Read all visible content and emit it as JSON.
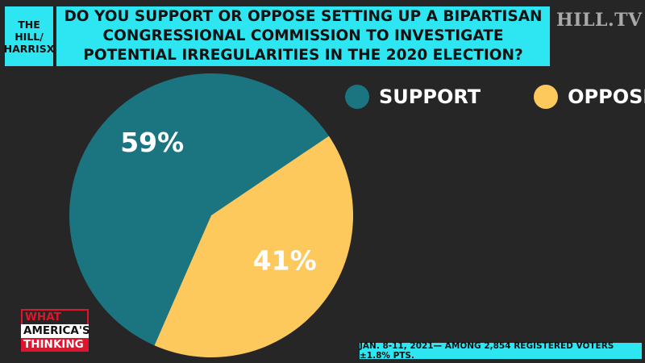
{
  "header": {
    "source": "THE HILL/ HARRISX",
    "question": "DO YOU SUPPORT OR OPPOSE SETTING UP A BIPARTISAN CONGRESSIONAL COMMISSION TO INVESTIGATE POTENTIAL IRREGULARITIES IN THE 2020 ELECTION?",
    "network_logo": "HILL.TV"
  },
  "colors": {
    "support": "#1b7581",
    "oppose": "#fdc85c",
    "accent_cyan": "#2ee6f2",
    "brand_red": "#e0142c",
    "background": "#262626"
  },
  "chart_data": {
    "type": "pie",
    "title": "DO YOU SUPPORT OR OPPOSE SETTING UP A BIPARTISAN CONGRESSIONAL COMMISSION TO INVESTIGATE POTENTIAL IRREGULARITIES IN THE 2020 ELECTION?",
    "categories": [
      "SUPPORT",
      "OPPOSE"
    ],
    "values": [
      59,
      41
    ],
    "labels": [
      "59%",
      "41%"
    ],
    "legend_position": "top-right"
  },
  "legend": {
    "support_label": "SUPPORT",
    "oppose_label": "OPPOSE"
  },
  "brand": {
    "line1": "WHAT",
    "line2": "AMERICA'S",
    "line3": "THINKING"
  },
  "footnote": "JAN. 8-11, 2021— AMONG 2,854 REGISTERED VOTERS ±1.8% PTS."
}
